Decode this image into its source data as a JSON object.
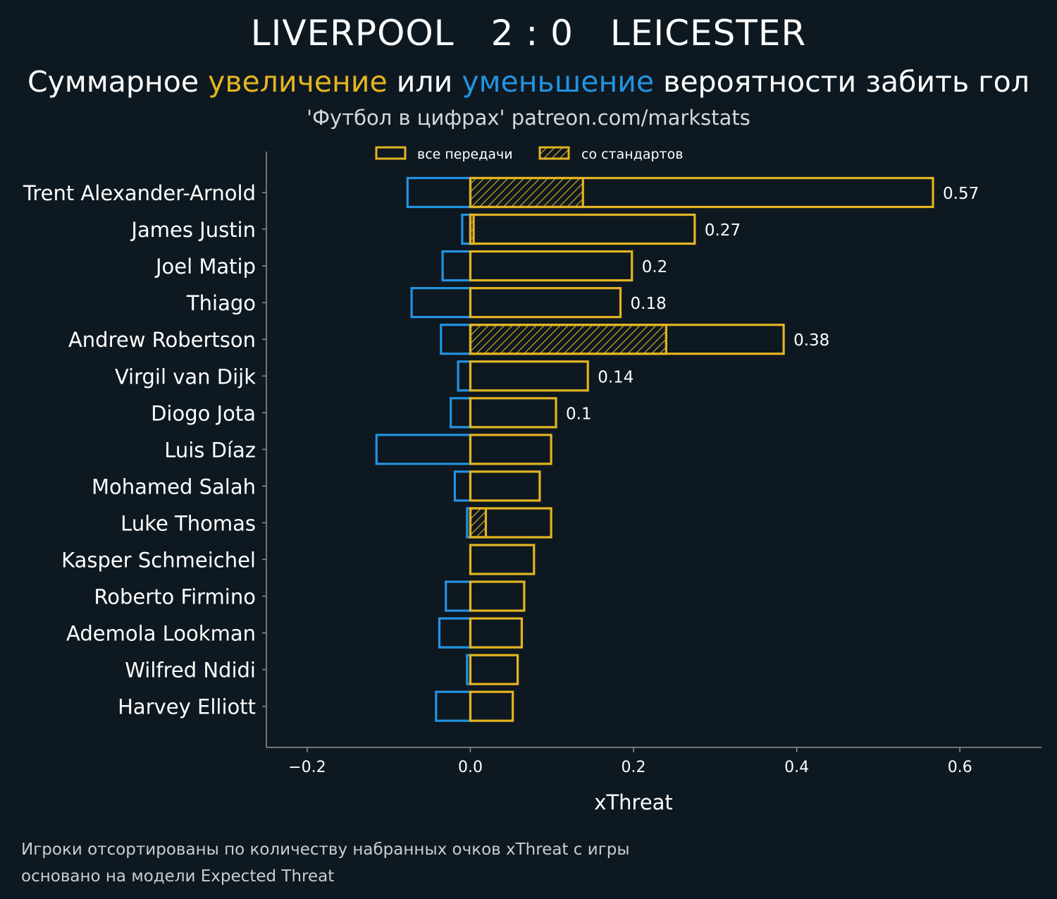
{
  "header": {
    "home": "LIVERPOOL",
    "score": "2 : 0",
    "away": "LEICESTER",
    "subtitle": {
      "part1": "Суммарное ",
      "highlight_up": "увеличение",
      "part2": " или ",
      "highlight_down": "уменьшение",
      "part3": " вероятности забить гол"
    },
    "credit": "'Футбол в цифрах' patreon.com/markstats"
  },
  "footer": {
    "line1": "Игроки отсортированы по количеству набранных очков xThreat с игры",
    "line2": "основано на модели Expected Threat"
  },
  "colors": {
    "background": "#0e1820",
    "positive": "#e3b422",
    "negative": "#2393e0",
    "axis": "#8a9296",
    "text": "#ffffff"
  },
  "chart_data": {
    "type": "bar",
    "orientation": "horizontal",
    "xlabel": "xThreat",
    "xlim": [
      -0.25,
      0.7
    ],
    "xticks": [
      -0.2,
      0.0,
      0.2,
      0.4,
      0.6
    ],
    "xtick_labels": [
      "−0.2",
      "0.0",
      "0.2",
      "0.4",
      "0.6"
    ],
    "legend": {
      "placement": "top",
      "entries": [
        {
          "label": "все передачи",
          "style": "outline"
        },
        {
          "label": "со стандартов",
          "style": "hatched"
        }
      ]
    },
    "categories": [
      "Trent Alexander-Arnold",
      "James Justin",
      "Joel Matip",
      "Thiago",
      "Andrew Robertson",
      "Virgil van Dijk",
      "Diogo Jota",
      "Luis Díaz",
      "Mohamed Salah",
      "Luke Thomas",
      "Kasper Schmeichel",
      "Roberto Firmino",
      "Ademola Lookman",
      "Wilfred Ndidi",
      "Harvey Elliott"
    ],
    "series": [
      {
        "name": "positive",
        "values": [
          0.567,
          0.275,
          0.198,
          0.184,
          0.384,
          0.144,
          0.105,
          0.099,
          0.085,
          0.099,
          0.078,
          0.066,
          0.063,
          0.058,
          0.052
        ]
      },
      {
        "name": "negative",
        "values": [
          -0.077,
          -0.01,
          -0.034,
          -0.072,
          -0.036,
          -0.015,
          -0.024,
          -0.115,
          -0.019,
          -0.004,
          0.0,
          -0.03,
          -0.038,
          -0.004,
          -0.042
        ]
      },
      {
        "name": "set_pieces",
        "values": [
          0.138,
          0.004,
          0.0,
          0.0,
          0.24,
          0.0,
          0.0,
          0.0,
          0.0,
          0.019,
          0.0,
          0.0,
          0.0,
          0.0,
          0.0
        ]
      }
    ],
    "value_labels": [
      "0.57",
      "0.27",
      "0.2",
      "0.18",
      "0.38",
      "0.14",
      "0.1",
      "",
      "",
      "",
      "",
      "",
      "",
      "",
      ""
    ]
  }
}
